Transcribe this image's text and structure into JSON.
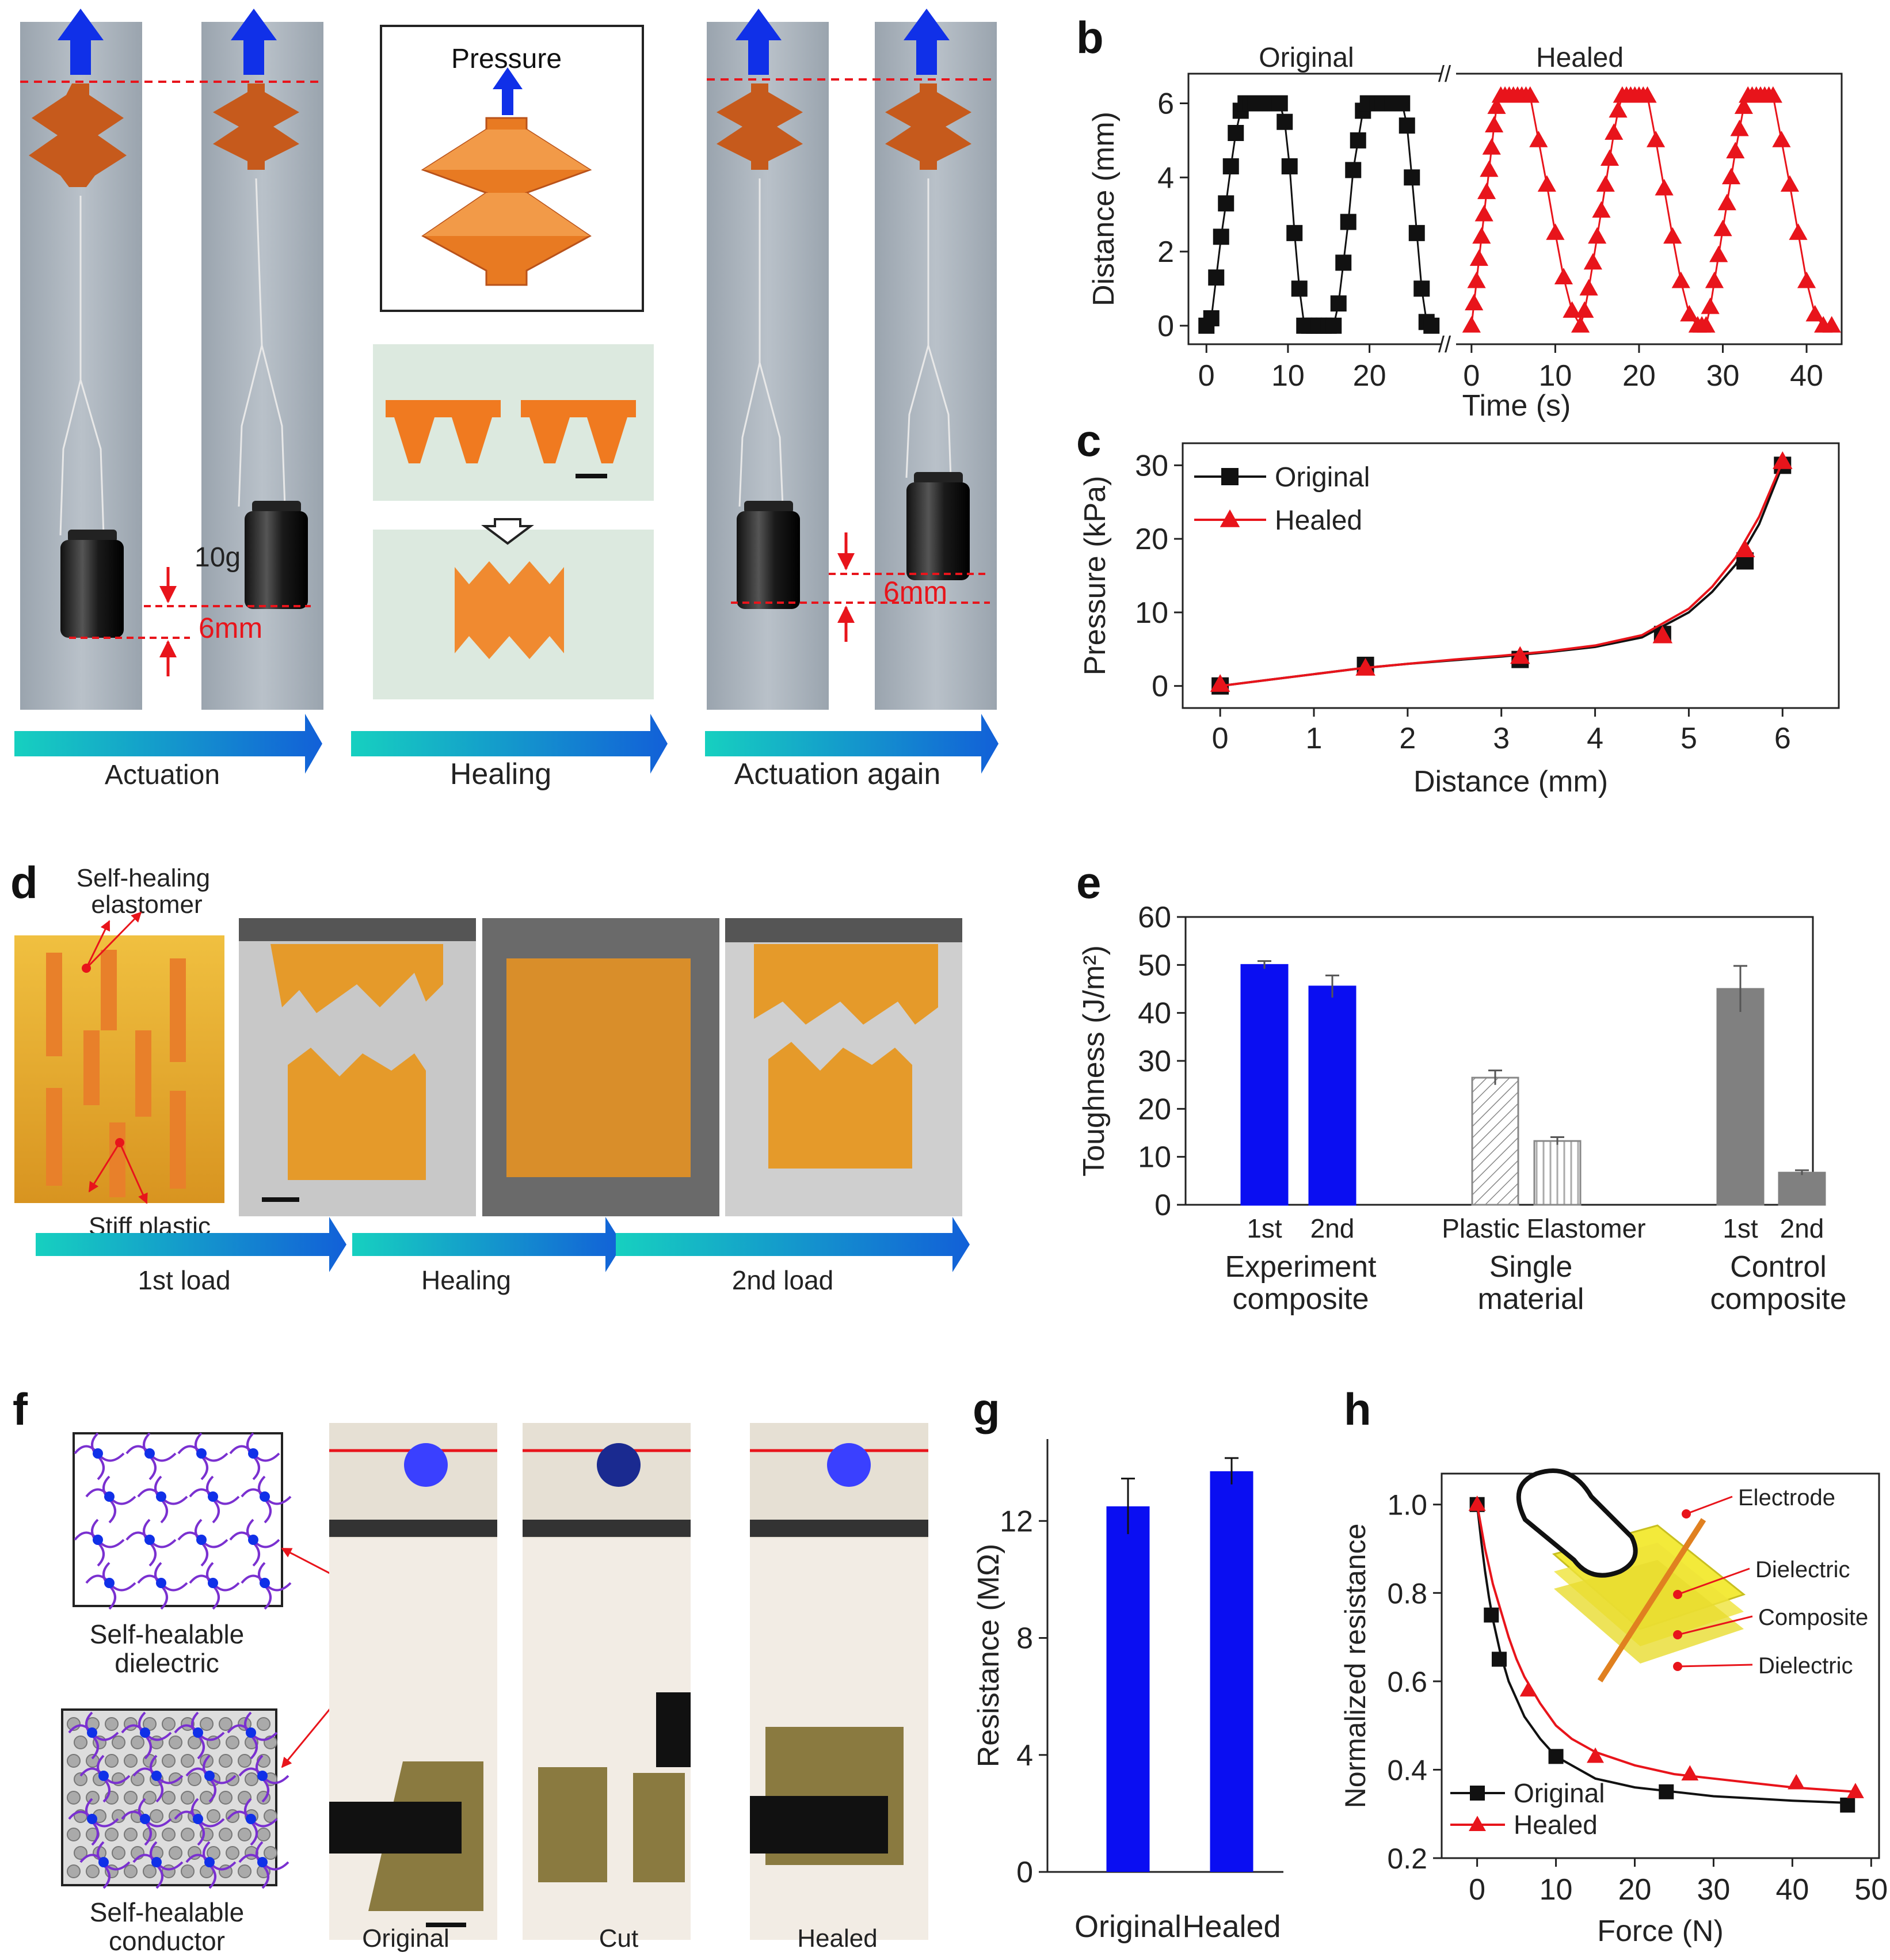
{
  "colors": {
    "black": "#111111",
    "red": "#e8141b",
    "blue": "#0a0ef2",
    "gray": "#808080",
    "photo_bg": "#aab3bc",
    "orange": "#e8701a",
    "arrow_teal": "#16d0c0",
    "arrow_blue": "#1260d8"
  },
  "panel_a": {
    "label": "a",
    "pressure": "Pressure",
    "weight": "10g",
    "disp_left": "6mm",
    "disp_right": "6mm",
    "arrows": [
      "Actuation",
      "Healing",
      "Actuation again"
    ]
  },
  "panel_d": {
    "label": "d",
    "top_label": "Self-healing elastomer",
    "bottom_label": "Stiff plastic",
    "arrows": [
      "1st load",
      "Healing",
      "2nd load"
    ]
  },
  "panel_f": {
    "label": "f",
    "dielectric": "Self-healable dielectric",
    "conductor": "Self-healable conductor",
    "photos": [
      "Original",
      "Cut",
      "Healed"
    ]
  },
  "chart_data": [
    {
      "panel": "b",
      "type": "line",
      "xlabel": "Time (s)",
      "ylabel": "Distance (mm)",
      "ylim": [
        -0.5,
        6.8
      ],
      "yticks": [
        0,
        2,
        4,
        6
      ],
      "group_labels": [
        "Original",
        "Healed"
      ],
      "segments": [
        {
          "name": "Original",
          "color": "#111111",
          "marker": "square",
          "xlim": [
            -1.5,
            28.5
          ],
          "xticks": [
            0,
            10,
            20
          ],
          "x": [
            0,
            0.6,
            1.2,
            1.8,
            2.4,
            3.0,
            3.6,
            4.2,
            4.8,
            5.4,
            6.0,
            6.6,
            7.2,
            7.8,
            8.4,
            9.0,
            9.6,
            10.2,
            10.8,
            11.4,
            12.0,
            12.6,
            13.2,
            13.8,
            14.4,
            15.0,
            15.6,
            16.2,
            16.8,
            17.4,
            18.0,
            18.6,
            19.2,
            19.8,
            20.4,
            21.0,
            21.6,
            22.2,
            22.8,
            23.4,
            24.0,
            24.6,
            25.2,
            25.8,
            26.4,
            27.0,
            27.6
          ],
          "y": [
            0,
            0.2,
            1.3,
            2.4,
            3.3,
            4.3,
            5.2,
            5.8,
            6.0,
            6.0,
            6.0,
            6.0,
            6.0,
            6.0,
            6.0,
            6.0,
            5.5,
            4.3,
            2.5,
            1.0,
            0,
            0,
            0,
            0,
            0,
            0,
            0,
            0.6,
            1.7,
            2.8,
            4.2,
            5.0,
            5.8,
            6.0,
            6.0,
            6.0,
            6.0,
            6.0,
            6.0,
            6.0,
            6.0,
            5.4,
            4.0,
            2.5,
            1.0,
            0.1,
            0
          ]
        },
        {
          "name": "Healed",
          "color": "#e8141b",
          "marker": "triangle",
          "xlim": [
            -1.5,
            43.5
          ],
          "xticks": [
            0,
            10,
            20,
            30,
            40
          ],
          "x": [
            0,
            0.3,
            0.6,
            0.9,
            1.2,
            1.5,
            1.8,
            2.1,
            2.4,
            2.7,
            3.0,
            3.5,
            4.0,
            4.5,
            5.0,
            5.5,
            6.0,
            6.5,
            7.0,
            8.0,
            9.0,
            10.0,
            11.0,
            12.0,
            13.0,
            13.5,
            14.0,
            14.5,
            15.0,
            15.5,
            16.0,
            16.5,
            17.0,
            17.5,
            18.0,
            18.5,
            19.0,
            19.5,
            20.0,
            20.5,
            21.0,
            22.0,
            23.0,
            24.0,
            25.0,
            26.0,
            27.0,
            27.5,
            28.0,
            28.5,
            29.0,
            29.5,
            30.0,
            30.5,
            31.0,
            31.5,
            32.0,
            32.5,
            33.0,
            33.5,
            34.0,
            34.5,
            35.0,
            35.5,
            36.0,
            37.0,
            38.0,
            39.0,
            40.0,
            41.0,
            42.0,
            43.0
          ],
          "y": [
            0,
            0.6,
            1.2,
            1.8,
            2.4,
            3.0,
            3.6,
            4.2,
            4.8,
            5.4,
            5.9,
            6.2,
            6.2,
            6.2,
            6.2,
            6.2,
            6.2,
            6.2,
            6.2,
            5.0,
            3.8,
            2.5,
            1.3,
            0.4,
            0,
            0.4,
            1.0,
            1.7,
            2.4,
            3.1,
            3.8,
            4.5,
            5.2,
            5.8,
            6.2,
            6.2,
            6.2,
            6.2,
            6.2,
            6.2,
            6.2,
            5.0,
            3.7,
            2.4,
            1.2,
            0.3,
            0,
            0,
            0,
            0.5,
            1.2,
            1.9,
            2.6,
            3.3,
            4.0,
            4.7,
            5.3,
            5.9,
            6.2,
            6.2,
            6.2,
            6.2,
            6.2,
            6.2,
            6.2,
            5.0,
            3.8,
            2.5,
            1.2,
            0.3,
            0,
            0
          ]
        }
      ]
    },
    {
      "panel": "c",
      "type": "line",
      "xlabel": "Distance (mm)",
      "ylabel": "Pressure (kPa)",
      "xlim": [
        -0.4,
        6.6
      ],
      "ylim": [
        -3,
        33
      ],
      "xticks": [
        0,
        1,
        2,
        3,
        4,
        5,
        6
      ],
      "yticks": [
        0,
        10,
        20,
        30
      ],
      "series": [
        {
          "name": "Original",
          "color": "#111111",
          "marker": "square",
          "x": [
            0,
            1.55,
            3.2,
            4.72,
            5.6,
            6.0
          ],
          "y": [
            0,
            2.8,
            3.6,
            7.0,
            17.0,
            30.0
          ],
          "curve_x": [
            0,
            0.5,
            1,
            1.5,
            2,
            2.5,
            3,
            3.5,
            4,
            4.5,
            5,
            5.25,
            5.5,
            5.75,
            6
          ],
          "curve_y": [
            0,
            0.8,
            1.6,
            2.4,
            3.0,
            3.5,
            4.0,
            4.6,
            5.3,
            6.6,
            10.0,
            12.8,
            16.5,
            22.0,
            30.0
          ]
        },
        {
          "name": "Healed",
          "color": "#e8141b",
          "marker": "triangle",
          "x": [
            0,
            1.55,
            3.2,
            4.72,
            5.6,
            6.0
          ],
          "y": [
            0.2,
            2.4,
            4.0,
            6.8,
            18.5,
            30.5
          ],
          "curve_x": [
            0,
            0.5,
            1,
            1.5,
            2,
            2.5,
            3,
            3.5,
            4,
            4.5,
            5,
            5.25,
            5.5,
            5.75,
            6
          ],
          "curve_y": [
            0,
            0.8,
            1.6,
            2.4,
            3.0,
            3.6,
            4.1,
            4.7,
            5.5,
            6.9,
            10.5,
            13.5,
            17.5,
            23.0,
            30.5
          ]
        }
      ]
    },
    {
      "panel": "e",
      "type": "bar",
      "ylabel": "Toughness (J/m²)",
      "ylim": [
        0,
        60
      ],
      "yticks": [
        0,
        10,
        20,
        30,
        40,
        50,
        60
      ],
      "groups": [
        "Experiment composite",
        "Single material",
        "Control composite"
      ],
      "bars": [
        {
          "label": "1st",
          "group": 0,
          "value": 50,
          "err": 0.8,
          "fill": "#0a0ef2",
          "pattern": "solid"
        },
        {
          "label": "2nd",
          "group": 0,
          "value": 45.5,
          "err": 2.3,
          "fill": "#0a0ef2",
          "pattern": "solid"
        },
        {
          "label": "Plastic",
          "group": 1,
          "value": 26.5,
          "err": 1.5,
          "fill": "#ffffff",
          "pattern": "diagonal"
        },
        {
          "label": "Elastomer",
          "group": 1,
          "value": 13.3,
          "err": 0.8,
          "fill": "#ffffff",
          "pattern": "vertical"
        },
        {
          "label": "1st",
          "group": 2,
          "value": 45,
          "err": 4.8,
          "fill": "#808080",
          "pattern": "solid"
        },
        {
          "label": "2nd",
          "group": 2,
          "value": 6.7,
          "err": 0.5,
          "fill": "#808080",
          "pattern": "solid"
        }
      ]
    },
    {
      "panel": "g",
      "type": "bar",
      "ylabel": "Resistance (MΩ)",
      "ylim": [
        0,
        14.8
      ],
      "yticks": [
        0,
        4,
        8,
        12
      ],
      "categories": [
        "Original",
        "Healed"
      ],
      "values": [
        12.5,
        13.7
      ],
      "errors": [
        0.95,
        0.45
      ],
      "color": "#0a0ef2"
    },
    {
      "panel": "h",
      "type": "scatter",
      "xlabel": "Force (N)",
      "ylabel": "Normalized resistance",
      "xlim": [
        -4.5,
        51
      ],
      "ylim": [
        0.2,
        1.07
      ],
      "xticks": [
        0,
        10,
        20,
        30,
        40,
        50
      ],
      "yticks": [
        0.2,
        0.4,
        0.6,
        0.8,
        1.0
      ],
      "inset_labels": [
        "Electrode",
        "Dielectric",
        "Composite",
        "Dielectric"
      ],
      "series": [
        {
          "name": "Original",
          "color": "#111111",
          "marker": "square",
          "x": [
            0,
            1.8,
            2.8,
            10,
            24,
            47
          ],
          "y": [
            1.0,
            0.75,
            0.65,
            0.43,
            0.35,
            0.32
          ],
          "curve_x": [
            0,
            0.5,
            1,
            1.5,
            2,
            3,
            4,
            5,
            6,
            8,
            10,
            12,
            15,
            20,
            25,
            30,
            35,
            40,
            47
          ],
          "curve_y": [
            1.0,
            0.92,
            0.85,
            0.79,
            0.74,
            0.66,
            0.6,
            0.56,
            0.52,
            0.47,
            0.43,
            0.41,
            0.38,
            0.36,
            0.35,
            0.34,
            0.335,
            0.33,
            0.325
          ]
        },
        {
          "name": "Healed",
          "color": "#e8141b",
          "marker": "triangle",
          "x": [
            0,
            6.5,
            15,
            27,
            40.5,
            48
          ],
          "y": [
            1.0,
            0.58,
            0.43,
            0.39,
            0.37,
            0.35
          ],
          "curve_x": [
            0,
            0.5,
            1,
            1.5,
            2,
            3,
            4,
            5,
            6,
            8,
            10,
            12,
            15,
            20,
            25,
            30,
            35,
            40,
            48
          ],
          "curve_y": [
            1.0,
            0.95,
            0.9,
            0.86,
            0.82,
            0.76,
            0.7,
            0.65,
            0.61,
            0.55,
            0.5,
            0.47,
            0.44,
            0.41,
            0.39,
            0.38,
            0.37,
            0.36,
            0.35
          ]
        }
      ]
    }
  ]
}
